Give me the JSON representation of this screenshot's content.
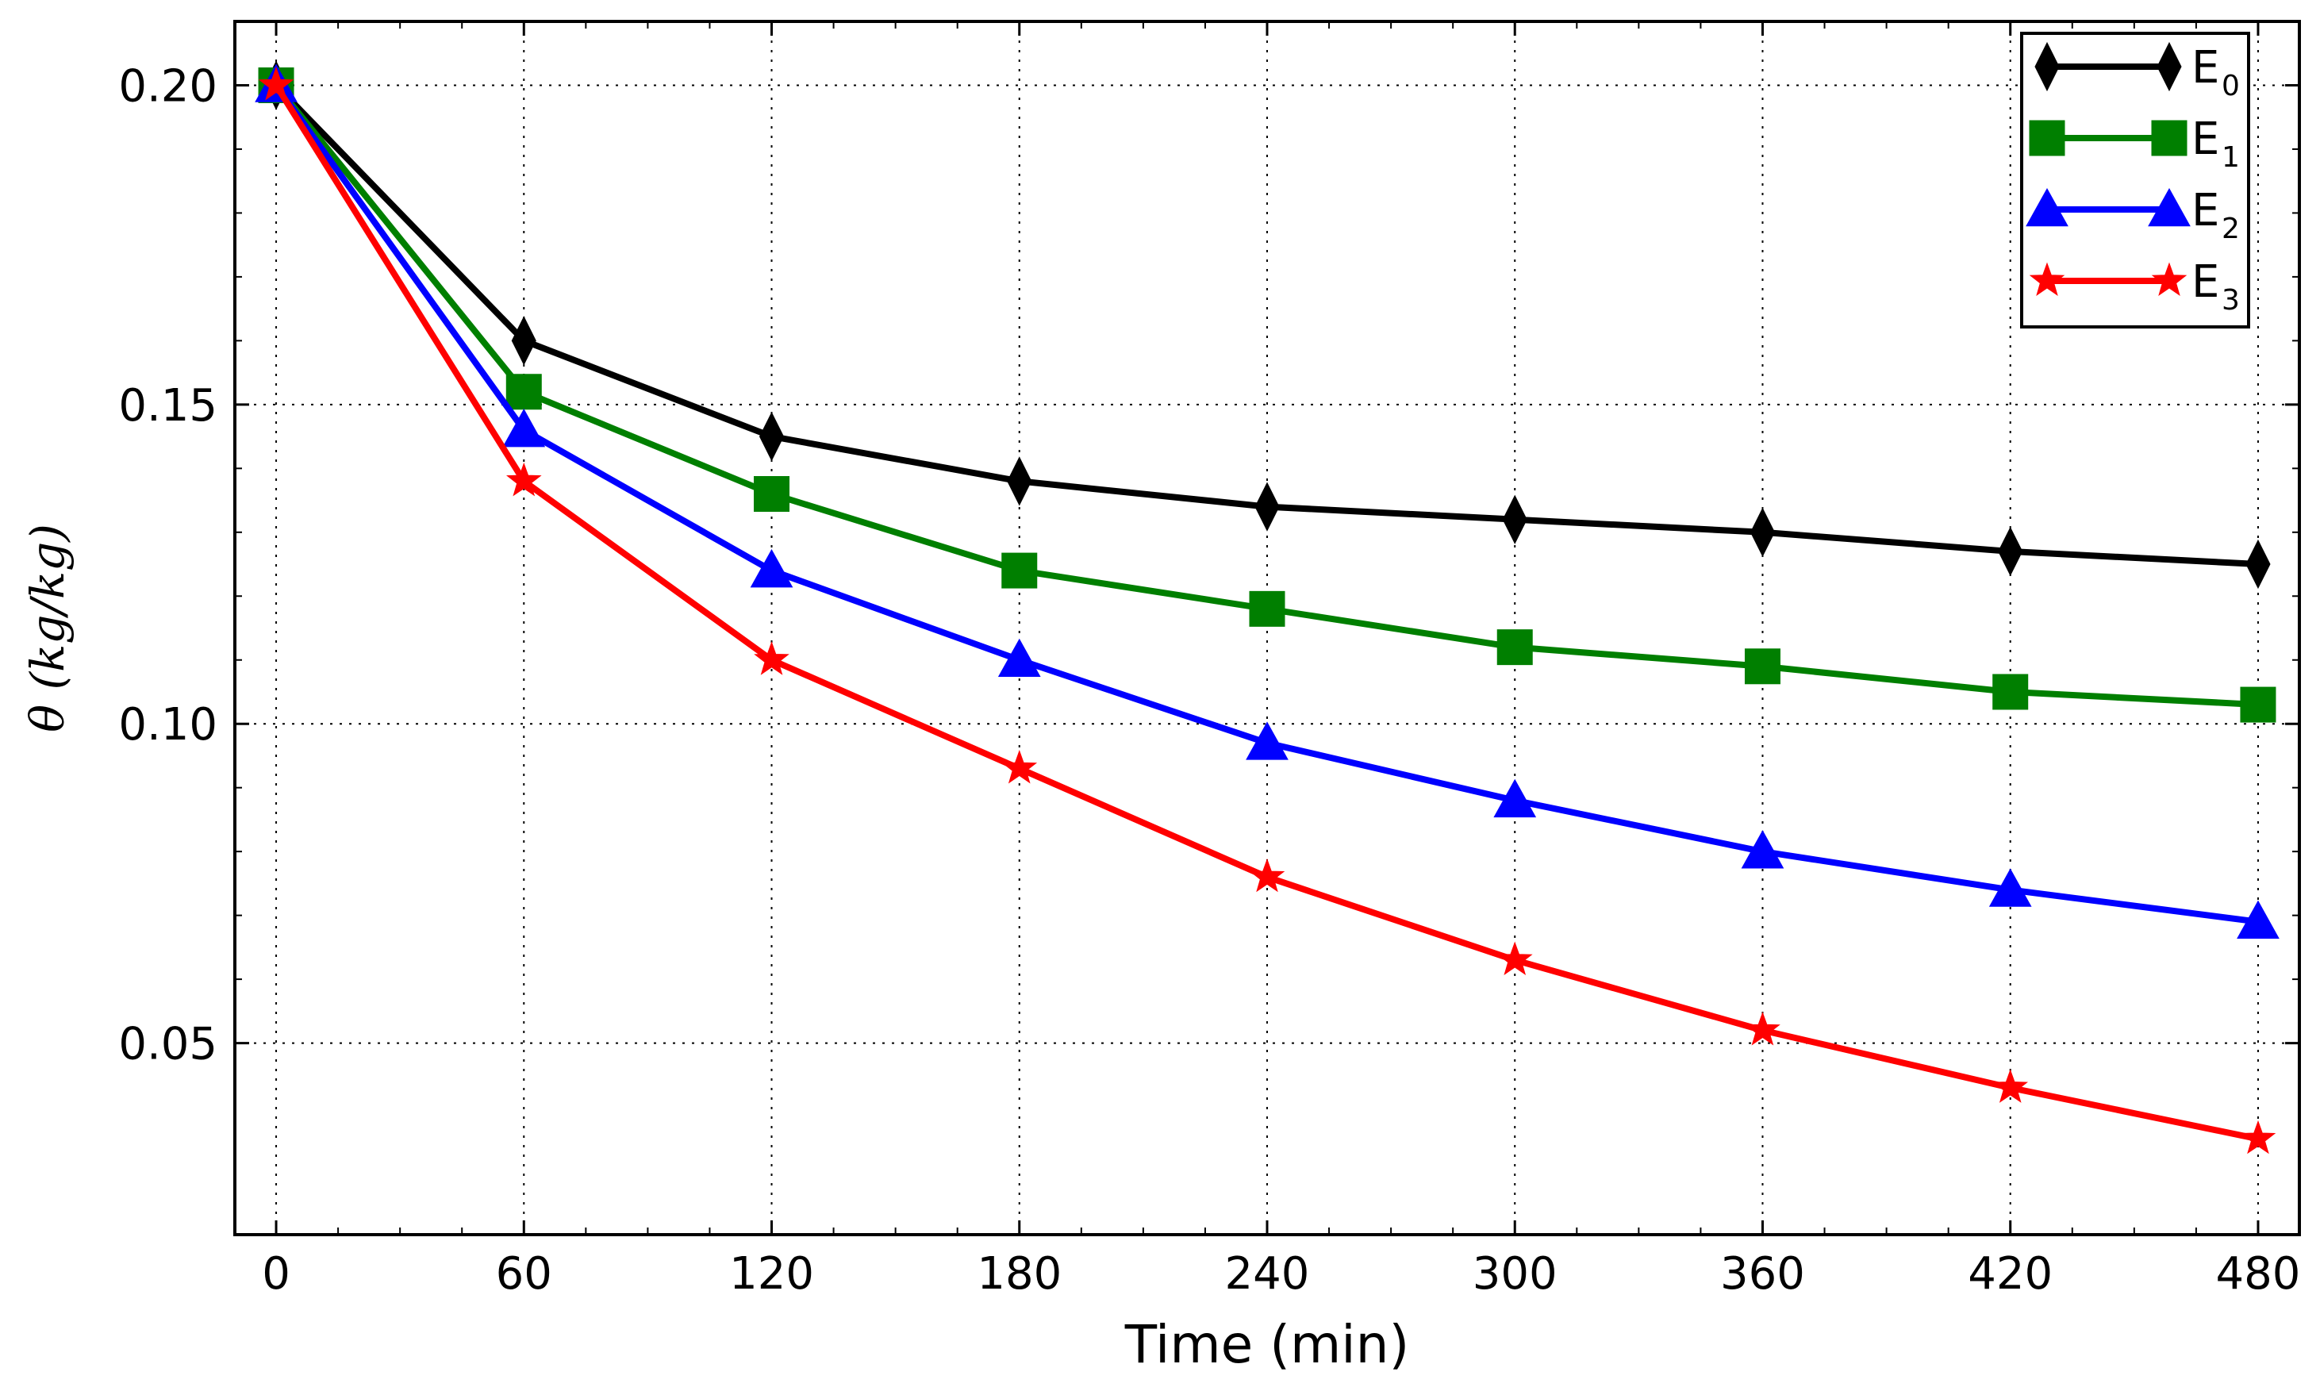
{
  "chart_data": {
    "type": "line",
    "title": "",
    "xlabel": "Time (min)",
    "ylabel": "θ (kg/kg)",
    "x": [
      0,
      60,
      120,
      180,
      240,
      300,
      360,
      420,
      480
    ],
    "xlim": [
      -10,
      490
    ],
    "ylim": [
      0.02,
      0.21
    ],
    "xticks": [
      0,
      60,
      120,
      180,
      240,
      300,
      360,
      420,
      480
    ],
    "xtick_labels": [
      "0",
      "60",
      "120",
      "180",
      "240",
      "300",
      "360",
      "420",
      "480"
    ],
    "yticks": [
      0.05,
      0.1,
      0.15,
      0.2
    ],
    "ytick_labels": [
      "0.05",
      "0.10",
      "0.15",
      "0.20"
    ],
    "grid": true,
    "legend_position": "top-right",
    "series": [
      {
        "name": "E",
        "sub": "0",
        "color": "#000000",
        "marker": "diamond",
        "values": [
          0.2,
          0.16,
          0.145,
          0.138,
          0.134,
          0.132,
          0.13,
          0.127,
          0.125
        ]
      },
      {
        "name": "E",
        "sub": "1",
        "color": "#007f00",
        "marker": "square",
        "values": [
          0.2,
          0.152,
          0.136,
          0.124,
          0.118,
          0.112,
          0.109,
          0.105,
          0.103
        ]
      },
      {
        "name": "E",
        "sub": "2",
        "color": "#0000ff",
        "marker": "triangle",
        "values": [
          0.2,
          0.146,
          0.124,
          0.11,
          0.097,
          0.088,
          0.08,
          0.074,
          0.069
        ]
      },
      {
        "name": "E",
        "sub": "3",
        "color": "#ff0000",
        "marker": "star",
        "values": [
          0.2,
          0.138,
          0.11,
          0.093,
          0.076,
          0.063,
          0.052,
          0.043,
          0.035
        ]
      }
    ]
  }
}
